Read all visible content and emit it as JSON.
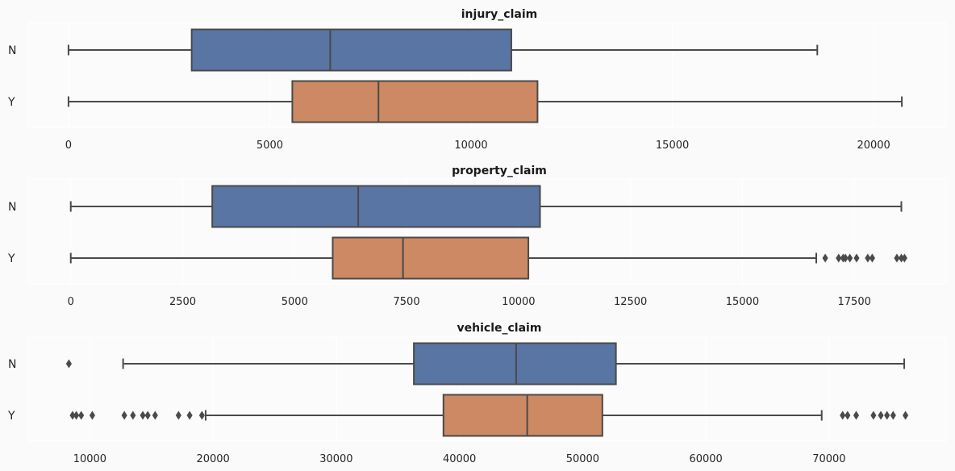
{
  "colors": {
    "N": "#5975a4",
    "Y": "#cc8963",
    "line": "#4a4a4a",
    "background": "#fafafa",
    "grid": "#ffffff"
  },
  "chart_data": [
    {
      "type": "boxplot",
      "orientation": "horizontal",
      "title": "injury_claim",
      "xlabel": "",
      "ylabel": "",
      "categories": [
        "N",
        "Y"
      ],
      "xlim": [
        -1000,
        21800
      ],
      "xticks": [
        0,
        5000,
        10000,
        15000,
        20000
      ],
      "xtick_labels": [
        "0",
        "5000",
        "10000",
        "15000",
        "20000"
      ],
      "grid": true,
      "series": [
        {
          "category": "N",
          "whisker_low": 0,
          "q1": 3060,
          "median": 6500,
          "q3": 11000,
          "whisker_high": 18600,
          "outliers": []
        },
        {
          "category": "Y",
          "whisker_low": 0,
          "q1": 5560,
          "median": 7700,
          "q3": 11650,
          "whisker_high": 20700,
          "outliers": []
        }
      ]
    },
    {
      "type": "boxplot",
      "orientation": "horizontal",
      "title": "property_claim",
      "xlabel": "",
      "ylabel": "",
      "categories": [
        "N",
        "Y"
      ],
      "xlim": [
        -950,
        19550
      ],
      "xticks": [
        0,
        2500,
        5000,
        7500,
        10000,
        12500,
        15000,
        17500
      ],
      "xtick_labels": [
        "0",
        "2500",
        "5000",
        "7500",
        "10000",
        "12500",
        "15000",
        "17500"
      ],
      "grid": true,
      "series": [
        {
          "category": "N",
          "whisker_low": 0,
          "q1": 3160,
          "median": 6420,
          "q3": 10480,
          "whisker_high": 18550,
          "outliers": []
        },
        {
          "category": "Y",
          "whisker_low": 0,
          "q1": 5850,
          "median": 7420,
          "q3": 10220,
          "whisker_high": 16650,
          "outliers": [
            16850,
            17150,
            17250,
            17300,
            17400,
            17550,
            17800,
            17900,
            18450,
            18550,
            18620
          ]
        }
      ]
    },
    {
      "type": "boxplot",
      "orientation": "horizontal",
      "title": "vehicle_claim",
      "xlabel": "",
      "ylabel": "",
      "categories": [
        "N",
        "Y"
      ],
      "xlim": [
        5000,
        79500
      ],
      "xticks": [
        10000,
        20000,
        30000,
        40000,
        50000,
        60000,
        70000
      ],
      "xtick_labels": [
        "10000",
        "20000",
        "30000",
        "40000",
        "50000",
        "60000",
        "70000"
      ],
      "grid": true,
      "series": [
        {
          "category": "N",
          "whisker_low": 12700,
          "q1": 36300,
          "median": 44600,
          "q3": 52700,
          "whisker_high": 76100,
          "outliers": [
            8300
          ]
        },
        {
          "category": "Y",
          "whisker_low": 19400,
          "q1": 38700,
          "median": 45500,
          "q3": 51600,
          "whisker_high": 69400,
          "outliers": [
            8600,
            8900,
            9300,
            10200,
            12800,
            13500,
            14300,
            14700,
            15300,
            17200,
            18100,
            19100,
            71100,
            71500,
            72200,
            73600,
            74200,
            74700,
            75200,
            76200
          ]
        }
      ]
    }
  ]
}
